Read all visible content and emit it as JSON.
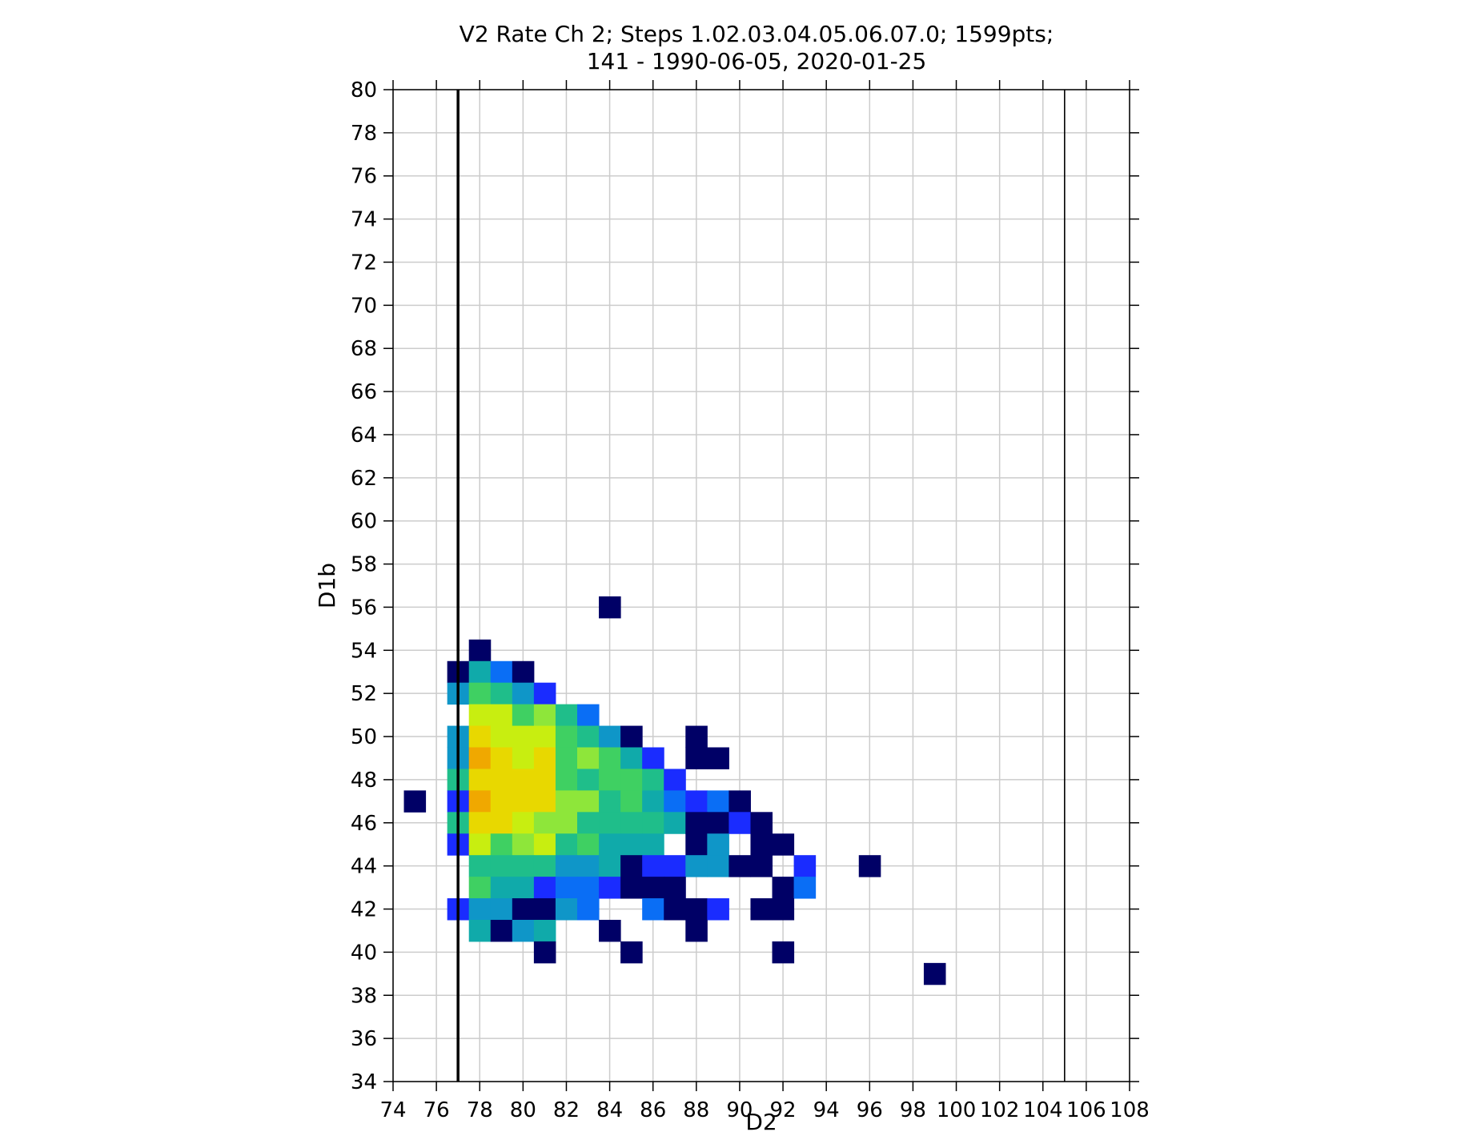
{
  "chart_data": {
    "type": "heatmap",
    "title": [
      "V2 Rate Ch 2; Steps 1.02.03.04.05.06.07.0; 1599pts;",
      "141 - 1990-06-05, 2020-01-25"
    ],
    "xlabel": "D2",
    "ylabel": "D1b",
    "xlim": [
      74,
      108
    ],
    "ylim": [
      34,
      80
    ],
    "xticks": [
      74,
      76,
      78,
      80,
      82,
      84,
      86,
      88,
      90,
      92,
      94,
      96,
      98,
      100,
      102,
      104,
      106,
      108
    ],
    "yticks": [
      34,
      36,
      38,
      40,
      42,
      44,
      46,
      48,
      50,
      52,
      54,
      56,
      58,
      60,
      62,
      64,
      66,
      68,
      70,
      72,
      74,
      76,
      78,
      80
    ],
    "grid": true,
    "vertical_lines": [
      {
        "x": 77,
        "style": "thick"
      },
      {
        "x": 105,
        "style": "thin"
      }
    ],
    "cell_size": 1,
    "colormap": [
      "#000066",
      "#1a2cff",
      "#0a6ef5",
      "#0f96c8",
      "#10aaaa",
      "#1fbe8a",
      "#3fd062",
      "#8ee63a",
      "#c8ee10",
      "#e8d800",
      "#f0a800"
    ],
    "cells": [
      [
        84,
        56,
        0
      ],
      [
        78,
        54,
        0
      ],
      [
        77,
        53,
        0
      ],
      [
        78,
        53,
        4
      ],
      [
        79,
        53,
        2
      ],
      [
        80,
        53,
        0
      ],
      [
        77,
        52,
        3
      ],
      [
        78,
        52,
        6
      ],
      [
        79,
        52,
        5
      ],
      [
        80,
        52,
        3
      ],
      [
        81,
        52,
        1
      ],
      [
        78,
        51,
        8
      ],
      [
        79,
        51,
        8
      ],
      [
        80,
        51,
        6
      ],
      [
        81,
        51,
        7
      ],
      [
        82,
        51,
        5
      ],
      [
        83,
        51,
        2
      ],
      [
        77,
        50,
        3
      ],
      [
        78,
        50,
        9
      ],
      [
        79,
        50,
        8
      ],
      [
        80,
        50,
        8
      ],
      [
        81,
        50,
        8
      ],
      [
        82,
        50,
        6
      ],
      [
        83,
        50,
        5
      ],
      [
        84,
        50,
        3
      ],
      [
        85,
        50,
        0
      ],
      [
        88,
        50,
        0
      ],
      [
        77,
        49,
        3
      ],
      [
        78,
        49,
        10
      ],
      [
        79,
        49,
        9
      ],
      [
        80,
        49,
        8
      ],
      [
        81,
        49,
        9
      ],
      [
        82,
        49,
        6
      ],
      [
        83,
        49,
        7
      ],
      [
        84,
        49,
        6
      ],
      [
        85,
        49,
        4
      ],
      [
        86,
        49,
        1
      ],
      [
        88,
        49,
        0
      ],
      [
        89,
        49,
        0
      ],
      [
        77,
        48,
        5
      ],
      [
        78,
        48,
        9
      ],
      [
        79,
        48,
        9
      ],
      [
        80,
        48,
        9
      ],
      [
        81,
        48,
        9
      ],
      [
        82,
        48,
        6
      ],
      [
        83,
        48,
        5
      ],
      [
        84,
        48,
        6
      ],
      [
        85,
        48,
        6
      ],
      [
        86,
        48,
        5
      ],
      [
        87,
        48,
        1
      ],
      [
        75,
        47,
        0
      ],
      [
        77,
        47,
        1
      ],
      [
        78,
        47,
        10
      ],
      [
        79,
        47,
        9
      ],
      [
        80,
        47,
        9
      ],
      [
        81,
        47,
        9
      ],
      [
        82,
        47,
        7
      ],
      [
        83,
        47,
        7
      ],
      [
        84,
        47,
        5
      ],
      [
        85,
        47,
        6
      ],
      [
        86,
        47,
        4
      ],
      [
        87,
        47,
        2
      ],
      [
        88,
        47,
        1
      ],
      [
        89,
        47,
        2
      ],
      [
        90,
        47,
        0
      ],
      [
        77,
        46,
        5
      ],
      [
        78,
        46,
        9
      ],
      [
        79,
        46,
        9
      ],
      [
        80,
        46,
        8
      ],
      [
        81,
        46,
        7
      ],
      [
        82,
        46,
        7
      ],
      [
        83,
        46,
        5
      ],
      [
        84,
        46,
        5
      ],
      [
        85,
        46,
        5
      ],
      [
        86,
        46,
        5
      ],
      [
        87,
        46,
        4
      ],
      [
        88,
        46,
        0
      ],
      [
        89,
        46,
        0
      ],
      [
        90,
        46,
        1
      ],
      [
        91,
        46,
        0
      ],
      [
        77,
        45,
        1
      ],
      [
        78,
        45,
        8
      ],
      [
        79,
        45,
        6
      ],
      [
        80,
        45,
        7
      ],
      [
        81,
        45,
        8
      ],
      [
        82,
        45,
        5
      ],
      [
        83,
        45,
        6
      ],
      [
        84,
        45,
        4
      ],
      [
        85,
        45,
        4
      ],
      [
        86,
        45,
        4
      ],
      [
        88,
        45,
        0
      ],
      [
        89,
        45,
        3
      ],
      [
        91,
        45,
        0
      ],
      [
        92,
        45,
        0
      ],
      [
        78,
        44,
        5
      ],
      [
        79,
        44,
        5
      ],
      [
        80,
        44,
        5
      ],
      [
        81,
        44,
        5
      ],
      [
        82,
        44,
        3
      ],
      [
        83,
        44,
        3
      ],
      [
        84,
        44,
        4
      ],
      [
        85,
        44,
        0
      ],
      [
        86,
        44,
        1
      ],
      [
        87,
        44,
        1
      ],
      [
        88,
        44,
        3
      ],
      [
        89,
        44,
        3
      ],
      [
        90,
        44,
        0
      ],
      [
        91,
        44,
        0
      ],
      [
        93,
        44,
        1
      ],
      [
        96,
        44,
        0
      ],
      [
        78,
        43,
        6
      ],
      [
        79,
        43,
        4
      ],
      [
        80,
        43,
        4
      ],
      [
        81,
        43,
        1
      ],
      [
        82,
        43,
        2
      ],
      [
        83,
        43,
        2
      ],
      [
        84,
        43,
        1
      ],
      [
        85,
        43,
        0
      ],
      [
        86,
        43,
        0
      ],
      [
        87,
        43,
        0
      ],
      [
        92,
        43,
        0
      ],
      [
        93,
        43,
        2
      ],
      [
        77,
        42,
        1
      ],
      [
        78,
        42,
        3
      ],
      [
        79,
        42,
        3
      ],
      [
        80,
        42,
        0
      ],
      [
        81,
        42,
        0
      ],
      [
        82,
        42,
        3
      ],
      [
        83,
        42,
        2
      ],
      [
        86,
        42,
        2
      ],
      [
        87,
        42,
        0
      ],
      [
        88,
        42,
        0
      ],
      [
        89,
        42,
        1
      ],
      [
        91,
        42,
        0
      ],
      [
        92,
        42,
        0
      ],
      [
        78,
        41,
        4
      ],
      [
        79,
        41,
        0
      ],
      [
        80,
        41,
        3
      ],
      [
        81,
        41,
        4
      ],
      [
        84,
        41,
        0
      ],
      [
        88,
        41,
        0
      ],
      [
        81,
        40,
        0
      ],
      [
        85,
        40,
        0
      ],
      [
        92,
        40,
        0
      ],
      [
        99,
        39,
        0
      ]
    ]
  }
}
